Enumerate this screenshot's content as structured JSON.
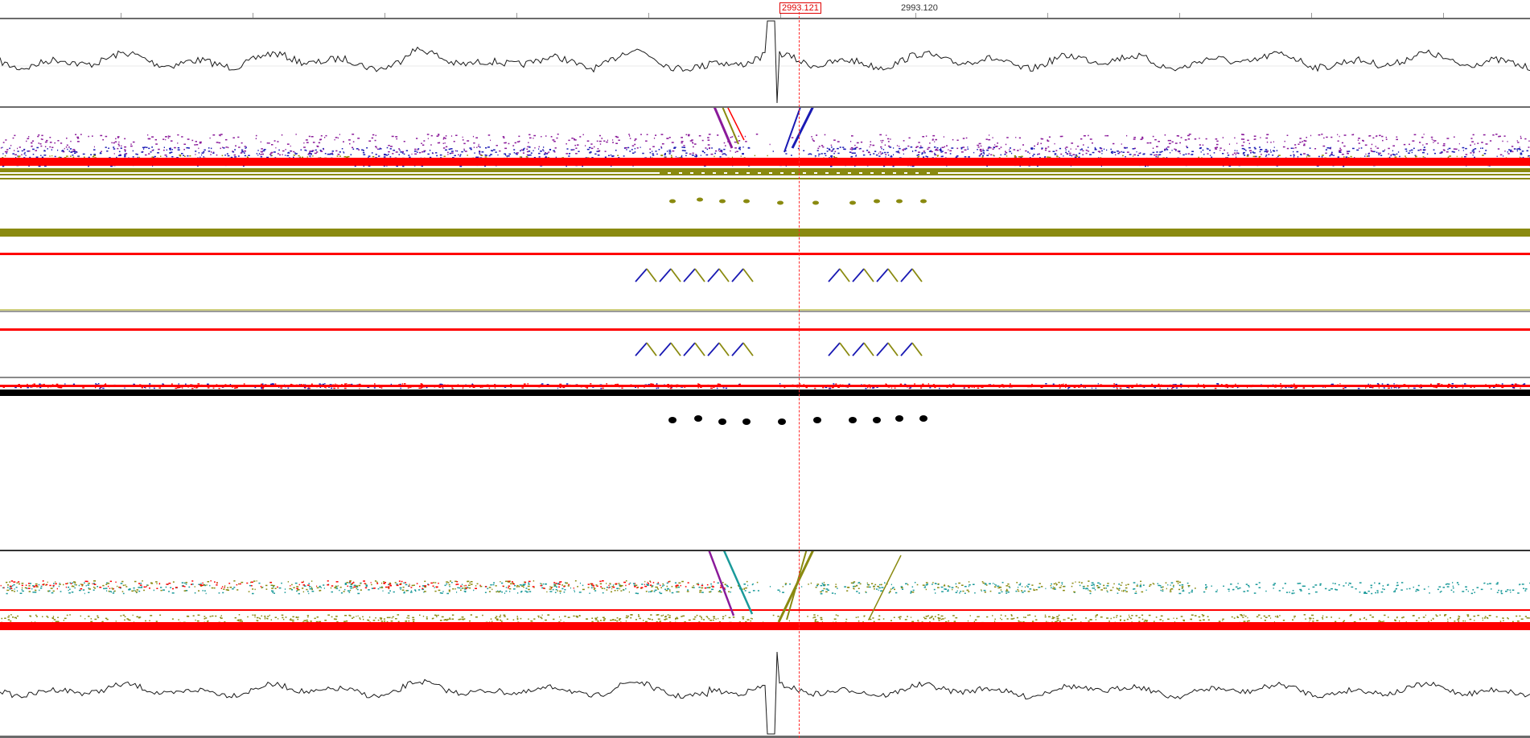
{
  "ruler": {
    "cursor_time": "2993.121",
    "major_label": "2993.120"
  },
  "colors": {
    "background": "#ffffff",
    "waveform": "#1a1a1a",
    "separator": "#6b6b6b",
    "cursor": "#ff2a2a",
    "red": "#ff0000",
    "blue": "#1a1ab4",
    "purple": "#8a1a9a",
    "olive": "#8a8a10",
    "teal": "#1a9a9a",
    "black": "#000000"
  },
  "panes": [
    {
      "name": "waveform-top-pane",
      "type": "waveform"
    },
    {
      "name": "spectral-pane-upper",
      "type": "scatter"
    },
    {
      "name": "band-pane-1",
      "type": "band"
    },
    {
      "name": "band-pane-2",
      "type": "band"
    },
    {
      "name": "black-band-pane",
      "type": "band"
    },
    {
      "name": "spectral-pane-lower",
      "type": "scatter"
    },
    {
      "name": "waveform-bottom-pane",
      "type": "waveform"
    }
  ]
}
